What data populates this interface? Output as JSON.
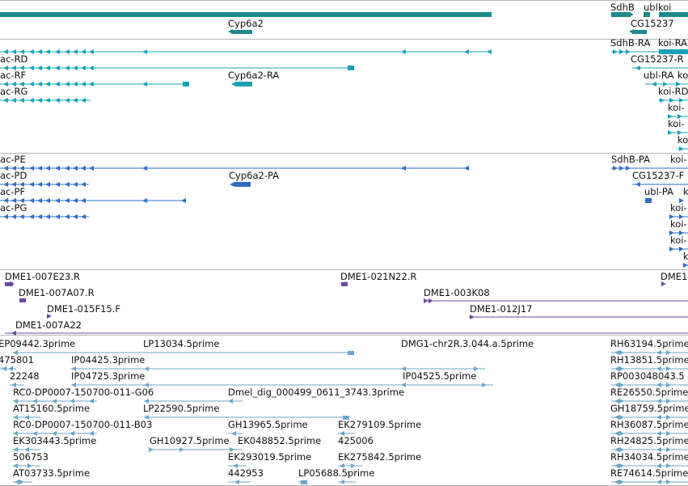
{
  "gene_labels": {
    "sdhb": "SdhB",
    "ubl": "ubl",
    "koi": "koi",
    "cyp6a2": "Cyp6a2",
    "cg15237": "CG15237"
  },
  "transcript_labels": {
    "rd": "oac-RD",
    "rf": "oac-RF",
    "rg": "oac-RG",
    "cyp6a2_ra": "Cyp6a2-RA",
    "sdhb_ra": "SdhB-RA",
    "koi_ra": "koi-RA",
    "cg15237_r": "CG15237-R",
    "ubl_ra": "ubl-RA",
    "ko": "ko",
    "koi_rd": "koi-RD",
    "koi_a": "koi-",
    "koi_b": "koi-",
    "ko_c": "ko"
  },
  "protein_labels": {
    "pe": "oac-PE",
    "pd": "oac-PD",
    "pf": "oac-PF",
    "pg": "oac-PG",
    "cyp6a2_pa": "Cyp6a2-PA",
    "sdhb_pa": "SdhB-PA",
    "koi": "koi-",
    "cg15237_f": "CG15237-F",
    "ubl_pa": "ubl-PA",
    "k_a": "k",
    "koi_a": "koi-",
    "koi_b": "koi-",
    "koi_c": "koi-",
    "k_b": "k"
  },
  "bac_labels": {
    "e23": "DME1-007E23.R",
    "n22": "DME1-021N22.R",
    "dme1": "DME1",
    "a07": "DME1-007A07.R",
    "k08": "DME1-003K08",
    "f15": "DME1-015F15.F",
    "j17": "DME1-012J17",
    "a22": "DME1-007A22"
  },
  "est_labels": {
    "ep09442": "EP09442.3prime",
    "lp13034": "LP13034.5prime",
    "dmg1": "DMG1-chr2R.3.044.a.5prime",
    "rh63194": "RH63194.5prime",
    "n475801": "475801",
    "ip04425": "IP04425.3prime",
    "rh13851": "RH13851.5prime",
    "n22248": "22248",
    "ip04725": "IP04725.3prime",
    "ip04525": "IP04525.5prime",
    "rp003048043": "RP003048043.5",
    "rc0_g06": "RC0-DP0007-150700-011-G06",
    "dmel_dig": "Dmel_dig_000499_0611_3743.3prime",
    "re26550": "RE26550.5prime",
    "at15160": "AT15160.5prime",
    "lp22590": "LP22590.5prime",
    "gh18759": "GH18759.5prime",
    "rc0_b03": "RC0-DP0007-150700-011-B03",
    "gh13965": "GH13965.5prime",
    "ek279109": "EK279109.5prime",
    "rh36087": "RH36087.5prime",
    "ek303443": "EK303443.5prime",
    "gh10927": "GH10927.5prime",
    "ek048852": "EK048852.5prime",
    "n425006": "425006",
    "rh24825": "RH24825.5prime",
    "n506753": "506753",
    "ek293019": "EK293019.5prime",
    "ek275842": "EK275842.5prime",
    "rh34034": "RH34034.5prime",
    "at03733": "AT03733.5prime",
    "n442953": "442953",
    "lp05688": "LP05688.5prime",
    "re74614": "RE74614.5prime"
  },
  "colors": {
    "gene": "#1a8a8a",
    "transcript": "#1aa0b8",
    "protein": "#2e6cc8",
    "bac": "#6b4a9e",
    "est": "#6aa6c8",
    "separator": "#b5b5b5"
  }
}
